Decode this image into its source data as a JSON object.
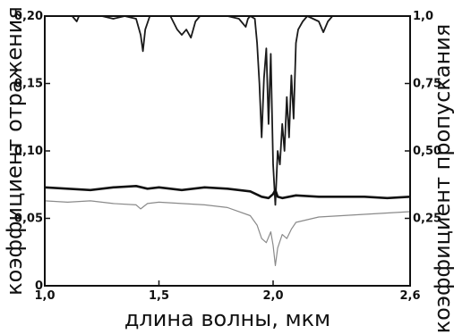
{
  "chart_data": {
    "type": "line",
    "xlabel": "длина волны, мкм",
    "ylabel_left": "коэффициент отражения",
    "ylabel_right": "коэффициент пропускания",
    "xlim": [
      1.0,
      2.6
    ],
    "ylim_left": [
      0,
      0.2
    ],
    "ylim_right": [
      0,
      1.0
    ],
    "x_ticks": [
      "1,0",
      "1,5",
      "2,0",
      "2,6"
    ],
    "x_tick_values": [
      1.0,
      1.5,
      2.0,
      2.6
    ],
    "y_left_ticks": [
      "0",
      "0,05",
      "0,10",
      "0,15",
      "0,20"
    ],
    "y_left_tick_values": [
      0,
      0.05,
      0.1,
      0.15,
      0.2
    ],
    "y_right_ticks": [
      "0,25",
      "0,50",
      "0,75",
      "1,0"
    ],
    "y_right_tick_values": [
      0.25,
      0.5,
      0.75,
      1.0
    ],
    "grid": false,
    "series": [
      {
        "axis": "right",
        "color": "#1a1a1a",
        "points": [
          [
            1.0,
            1.0
          ],
          [
            1.08,
            1.0
          ],
          [
            1.12,
            1.0
          ],
          [
            1.14,
            0.98
          ],
          [
            1.15,
            1.0
          ],
          [
            1.25,
            1.0
          ],
          [
            1.3,
            0.99
          ],
          [
            1.35,
            1.0
          ],
          [
            1.4,
            0.99
          ],
          [
            1.42,
            0.93
          ],
          [
            1.43,
            0.87
          ],
          [
            1.44,
            0.95
          ],
          [
            1.46,
            1.0
          ],
          [
            1.55,
            1.0
          ],
          [
            1.58,
            0.95
          ],
          [
            1.6,
            0.93
          ],
          [
            1.62,
            0.95
          ],
          [
            1.64,
            0.92
          ],
          [
            1.66,
            0.98
          ],
          [
            1.68,
            1.0
          ],
          [
            1.8,
            1.0
          ],
          [
            1.85,
            0.99
          ],
          [
            1.88,
            0.96
          ],
          [
            1.89,
            0.99
          ],
          [
            1.9,
            1.0
          ],
          [
            1.92,
            0.99
          ],
          [
            1.93,
            0.9
          ],
          [
            1.94,
            0.75
          ],
          [
            1.95,
            0.55
          ],
          [
            1.96,
            0.77
          ],
          [
            1.97,
            0.88
          ],
          [
            1.98,
            0.6
          ],
          [
            1.99,
            0.86
          ],
          [
            2.0,
            0.45
          ],
          [
            2.01,
            0.3
          ],
          [
            2.02,
            0.5
          ],
          [
            2.03,
            0.45
          ],
          [
            2.04,
            0.6
          ],
          [
            2.05,
            0.5
          ],
          [
            2.06,
            0.7
          ],
          [
            2.07,
            0.55
          ],
          [
            2.08,
            0.78
          ],
          [
            2.09,
            0.62
          ],
          [
            2.1,
            0.9
          ],
          [
            2.11,
            0.95
          ],
          [
            2.13,
            0.98
          ],
          [
            2.15,
            1.0
          ],
          [
            2.2,
            0.98
          ],
          [
            2.22,
            0.94
          ],
          [
            2.24,
            0.98
          ],
          [
            2.26,
            1.0
          ],
          [
            2.4,
            1.0
          ],
          [
            2.6,
            1.0
          ]
        ]
      },
      {
        "axis": "left",
        "color": "#111111",
        "width": 2.6,
        "points": [
          [
            1.0,
            0.073
          ],
          [
            1.1,
            0.072
          ],
          [
            1.2,
            0.071
          ],
          [
            1.3,
            0.073
          ],
          [
            1.4,
            0.074
          ],
          [
            1.45,
            0.072
          ],
          [
            1.5,
            0.073
          ],
          [
            1.6,
            0.071
          ],
          [
            1.7,
            0.073
          ],
          [
            1.8,
            0.072
          ],
          [
            1.9,
            0.07
          ],
          [
            1.95,
            0.066
          ],
          [
            1.98,
            0.065
          ],
          [
            2.0,
            0.068
          ],
          [
            2.01,
            0.071
          ],
          [
            2.02,
            0.066
          ],
          [
            2.04,
            0.065
          ],
          [
            2.1,
            0.067
          ],
          [
            2.2,
            0.066
          ],
          [
            2.3,
            0.066
          ],
          [
            2.4,
            0.066
          ],
          [
            2.5,
            0.065
          ],
          [
            2.6,
            0.066
          ]
        ]
      },
      {
        "axis": "left",
        "color": "#8a8a8a",
        "width": 1.2,
        "points": [
          [
            1.0,
            0.063
          ],
          [
            1.1,
            0.062
          ],
          [
            1.2,
            0.063
          ],
          [
            1.3,
            0.061
          ],
          [
            1.4,
            0.06
          ],
          [
            1.42,
            0.057
          ],
          [
            1.45,
            0.061
          ],
          [
            1.5,
            0.062
          ],
          [
            1.6,
            0.061
          ],
          [
            1.7,
            0.06
          ],
          [
            1.8,
            0.058
          ],
          [
            1.9,
            0.052
          ],
          [
            1.93,
            0.045
          ],
          [
            1.95,
            0.035
          ],
          [
            1.97,
            0.032
          ],
          [
            1.99,
            0.04
          ],
          [
            2.0,
            0.03
          ],
          [
            2.01,
            0.015
          ],
          [
            2.02,
            0.028
          ],
          [
            2.04,
            0.038
          ],
          [
            2.06,
            0.035
          ],
          [
            2.08,
            0.042
          ],
          [
            2.1,
            0.047
          ],
          [
            2.15,
            0.049
          ],
          [
            2.2,
            0.051
          ],
          [
            2.3,
            0.052
          ],
          [
            2.4,
            0.053
          ],
          [
            2.5,
            0.054
          ],
          [
            2.6,
            0.055
          ]
        ]
      }
    ]
  }
}
